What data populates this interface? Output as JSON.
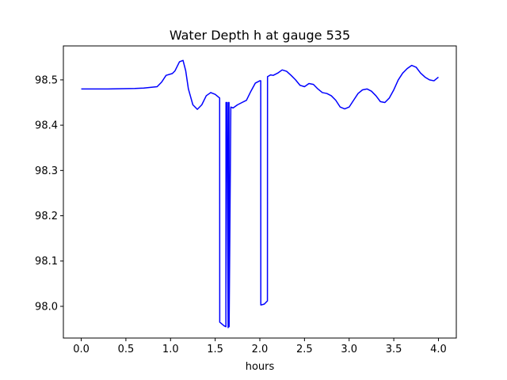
{
  "chart_data": {
    "type": "line",
    "title": "Water Depth h at gauge 535",
    "xlabel": "hours",
    "ylabel": "",
    "xlim": [
      -0.2,
      4.2
    ],
    "ylim": [
      97.93,
      98.575
    ],
    "xticks": [
      0.0,
      0.5,
      1.0,
      1.5,
      2.0,
      2.5,
      3.0,
      3.5,
      4.0
    ],
    "xtick_labels": [
      "0.0",
      "0.5",
      "1.0",
      "1.5",
      "2.0",
      "2.5",
      "3.0",
      "3.5",
      "4.0"
    ],
    "yticks": [
      98.0,
      98.1,
      98.2,
      98.3,
      98.4,
      98.5
    ],
    "ytick_labels": [
      "98.0",
      "98.1",
      "98.2",
      "98.3",
      "98.4",
      "98.5"
    ],
    "grid": false,
    "legend": "none",
    "series": [
      {
        "color": "#0000ff",
        "x": [
          0.0,
          0.3,
          0.6,
          0.7,
          0.85,
          0.9,
          0.95,
          1.02,
          1.05,
          1.1,
          1.14,
          1.17,
          1.2,
          1.25,
          1.3,
          1.35,
          1.4,
          1.45,
          1.5,
          1.55,
          1.551,
          1.6,
          1.62,
          1.621,
          1.63,
          1.645,
          1.646,
          1.655,
          1.656,
          1.675,
          1.7,
          1.75,
          1.8,
          1.85,
          1.9,
          1.95,
          2.0,
          2.01,
          2.011,
          2.05,
          2.085,
          2.086,
          2.12,
          2.15,
          2.2,
          2.25,
          2.3,
          2.35,
          2.4,
          2.45,
          2.5,
          2.55,
          2.6,
          2.65,
          2.7,
          2.75,
          2.8,
          2.85,
          2.9,
          2.95,
          3.0,
          3.05,
          3.1,
          3.15,
          3.2,
          3.25,
          3.3,
          3.35,
          3.4,
          3.45,
          3.5,
          3.55,
          3.6,
          3.65,
          3.7,
          3.75,
          3.8,
          3.85,
          3.9,
          3.95,
          4.0
        ],
        "y": [
          98.48,
          98.48,
          98.481,
          98.482,
          98.485,
          98.495,
          98.51,
          98.514,
          98.52,
          98.54,
          98.543,
          98.52,
          98.48,
          98.445,
          98.435,
          98.445,
          98.465,
          98.472,
          98.468,
          98.46,
          97.965,
          97.957,
          97.955,
          98.45,
          98.45,
          97.953,
          98.45,
          98.45,
          97.955,
          98.44,
          98.438,
          98.445,
          98.45,
          98.455,
          98.475,
          98.493,
          98.498,
          98.498,
          98.003,
          98.005,
          98.012,
          98.507,
          98.511,
          98.51,
          98.515,
          98.522,
          98.519,
          98.51,
          98.5,
          98.488,
          98.485,
          98.492,
          98.49,
          98.48,
          98.472,
          98.47,
          98.465,
          98.455,
          98.44,
          98.436,
          98.44,
          98.455,
          98.47,
          98.478,
          98.48,
          98.475,
          98.465,
          98.452,
          98.45,
          98.46,
          98.478,
          98.5,
          98.515,
          98.525,
          98.532,
          98.528,
          98.515,
          98.506,
          98.5,
          98.498,
          98.506
        ]
      }
    ]
  }
}
